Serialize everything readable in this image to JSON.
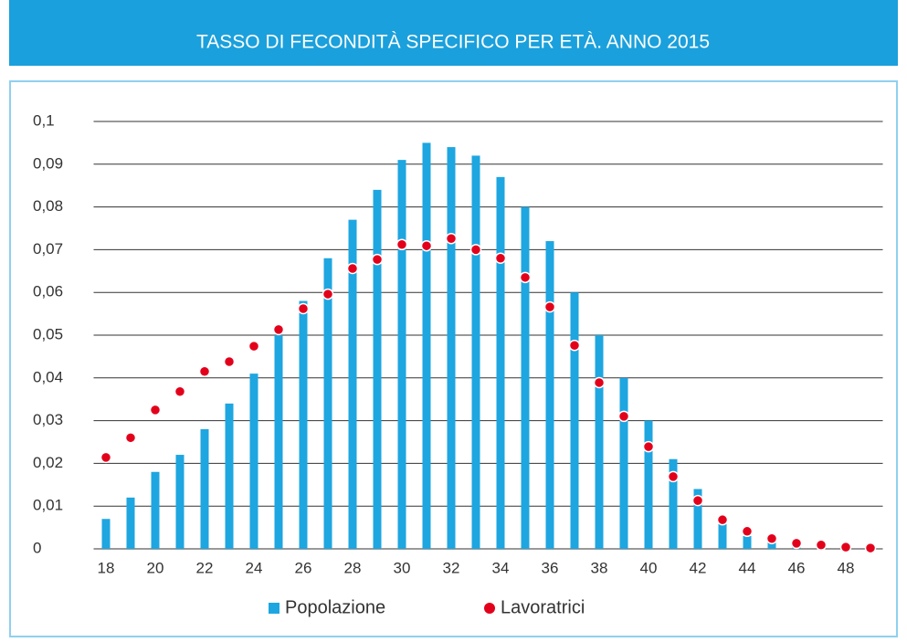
{
  "chart_data": {
    "type": "bar",
    "title": "TASSO DI FECONDITÀ SPECIFICO PER ETÀ. ANNO 2015",
    "categories": [
      "18",
      null,
      "20",
      null,
      "22",
      null,
      "24",
      null,
      "26",
      null,
      "28",
      null,
      "30",
      null,
      "32",
      null,
      "34",
      null,
      "36",
      null,
      "38",
      null,
      "40",
      null,
      "42",
      null,
      "44",
      null,
      "46",
      null,
      "48",
      null
    ],
    "series": [
      {
        "name": "Popolazione",
        "color": "#1ea6e0",
        "type": "bar",
        "values": [
          0.007,
          0.012,
          0.018,
          0.022,
          0.028,
          0.034,
          0.041,
          0.05,
          0.058,
          0.068,
          0.077,
          0.084,
          0.091,
          0.095,
          0.094,
          0.092,
          0.087,
          0.08,
          0.072,
          0.06,
          0.05,
          0.04,
          0.03,
          0.021,
          0.014,
          0.007,
          0.003,
          0.0015,
          0.0008,
          0.0004,
          0.0002,
          0.0001
        ]
      },
      {
        "name": "Lavoratrici",
        "color": "#e3001b",
        "type": "scatter",
        "values": [
          0.0214,
          0.026,
          0.0325,
          0.0368,
          0.0415,
          0.0438,
          0.0474,
          0.0513,
          0.0562,
          0.0596,
          0.0656,
          0.0677,
          0.0712,
          0.0709,
          0.0726,
          0.07,
          0.068,
          0.0635,
          0.0566,
          0.0476,
          0.0389,
          0.031,
          0.0239,
          0.0169,
          0.0113,
          0.0068,
          0.0041,
          0.0024,
          0.0013,
          0.0009,
          0.0004,
          0.0002
        ]
      }
    ],
    "ylim": [
      0,
      0.1
    ],
    "yticks": [
      0,
      {
        "value": 0.01,
        "label": "0,01"
      },
      {
        "value": 0.02,
        "label": "0,02"
      },
      {
        "value": 0.03,
        "label": "0,03"
      },
      {
        "value": 0.04,
        "label": "0,04"
      },
      {
        "value": 0.05,
        "label": "0,05"
      },
      {
        "value": 0.06,
        "label": "0,06"
      },
      {
        "value": 0.07,
        "label": "0,07"
      },
      {
        "value": 0.08,
        "label": "0,08"
      },
      {
        "value": 0.09,
        "label": "0,09"
      },
      {
        "value": 0.1,
        "label": "0,1"
      }
    ],
    "grid": true,
    "legend": "bottom"
  }
}
